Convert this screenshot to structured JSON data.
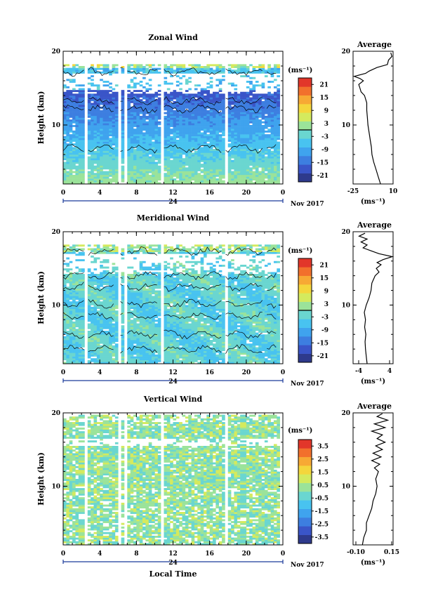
{
  "figure": {
    "x_axis_label": "Local Time",
    "date_label": "Nov 2017",
    "day_label": "24"
  },
  "chart_data": [
    {
      "type": "heatmap",
      "title": "Zonal Wind",
      "ylabel": "Height (km)",
      "ylim": [
        2,
        20
      ],
      "y_ticks": [
        {
          "v": 20,
          "label": "20"
        },
        {
          "v": 10,
          "label": "10"
        }
      ],
      "x_ticks": [
        "0",
        "4",
        "8",
        "12",
        "16",
        "20",
        "0"
      ],
      "xlim": [
        0,
        24
      ],
      "units": "(ms⁻¹)",
      "colorbar": {
        "min": -24,
        "max": 24,
        "zero_line": 0,
        "tick_labels": [
          "21",
          "15",
          "9",
          "3",
          "-3",
          "-9",
          "-15",
          "-21"
        ],
        "colors": [
          "#2e3a8c",
          "#3a55c8",
          "#3d7ee0",
          "#3fa3ee",
          "#48c3f0",
          "#6ad6d0",
          "#9be39a",
          "#d4ea5e",
          "#f4d63c",
          "#f7a934",
          "#f2702c",
          "#e2362a"
        ]
      },
      "profile": {
        "title": "Average",
        "xlim": [
          -25,
          10
        ],
        "x_ticks": [
          "-25",
          "10"
        ],
        "y_ticks": [
          "20",
          "10"
        ],
        "xlabel": "(ms⁻¹)",
        "points": [
          [
            -1,
            2
          ],
          [
            -3,
            3
          ],
          [
            -5,
            4
          ],
          [
            -7,
            5
          ],
          [
            -8.5,
            6
          ],
          [
            -9,
            7
          ],
          [
            -10,
            8
          ],
          [
            -11,
            9
          ],
          [
            -12,
            10
          ],
          [
            -12.5,
            11
          ],
          [
            -13,
            12
          ],
          [
            -13,
            13
          ],
          [
            -15,
            14
          ],
          [
            -18,
            14.5
          ],
          [
            -19,
            15
          ],
          [
            -20,
            15.5
          ],
          [
            -16,
            16
          ],
          [
            -19,
            16.3
          ],
          [
            -24,
            16.6
          ],
          [
            -14,
            17
          ],
          [
            -11,
            17.3
          ],
          [
            -4,
            17.8
          ],
          [
            5,
            18.2
          ],
          [
            6,
            18.8
          ],
          [
            9,
            19.3
          ],
          [
            8,
            19.8
          ]
        ]
      }
    },
    {
      "type": "heatmap",
      "title": "Meridional Wind",
      "ylabel": "Height (km)",
      "ylim": [
        2,
        20
      ],
      "y_ticks": [
        {
          "v": 20,
          "label": "20"
        },
        {
          "v": 10,
          "label": "10"
        }
      ],
      "x_ticks": [
        "0",
        "4",
        "8",
        "12",
        "16",
        "20",
        "0"
      ],
      "xlim": [
        0,
        24
      ],
      "units": "(ms⁻¹)",
      "colorbar": {
        "min": -24,
        "max": 24,
        "zero_line": 0,
        "tick_labels": [
          "21",
          "15",
          "9",
          "3",
          "-3",
          "-9",
          "-15",
          "-21"
        ],
        "colors": [
          "#2e3a8c",
          "#3a55c8",
          "#3d7ee0",
          "#3fa3ee",
          "#48c3f0",
          "#6ad6d0",
          "#9be39a",
          "#d4ea5e",
          "#f4d63c",
          "#f7a934",
          "#f2702c",
          "#e2362a"
        ]
      },
      "profile": {
        "title": "Average",
        "xlim": [
          -5,
          5
        ],
        "x_ticks": [
          "-4",
          "4"
        ],
        "y_ticks": [
          "20",
          "10"
        ],
        "xlabel": "(ms⁻¹)",
        "points": [
          [
            -1.5,
            2
          ],
          [
            -1.7,
            3
          ],
          [
            -1.9,
            4
          ],
          [
            -2.0,
            5
          ],
          [
            -1.8,
            6
          ],
          [
            -2.1,
            7
          ],
          [
            -1.9,
            8
          ],
          [
            -2.2,
            9
          ],
          [
            -1.7,
            10
          ],
          [
            -1.0,
            11
          ],
          [
            -0.5,
            12
          ],
          [
            -0.3,
            13
          ],
          [
            0.5,
            14
          ],
          [
            1.5,
            14.5
          ],
          [
            0.8,
            15
          ],
          [
            2.0,
            15.5
          ],
          [
            1.0,
            15.8
          ],
          [
            2.5,
            16.2
          ],
          [
            4.8,
            16.6
          ],
          [
            1.5,
            17
          ],
          [
            -0.5,
            17.4
          ],
          [
            -2.5,
            17.8
          ],
          [
            -1.5,
            18.2
          ],
          [
            -3.0,
            18.6
          ],
          [
            -1.5,
            19
          ],
          [
            -3.5,
            19.4
          ],
          [
            -2.0,
            19.8
          ]
        ]
      }
    },
    {
      "type": "heatmap",
      "title": "Vertical Wind",
      "ylabel": "Height (km)",
      "ylim": [
        2,
        20
      ],
      "y_ticks": [
        {
          "v": 20,
          "label": "20"
        },
        {
          "v": 10,
          "label": "10"
        }
      ],
      "x_ticks": [
        "0",
        "4",
        "8",
        "12",
        "16",
        "20",
        "0"
      ],
      "xlim": [
        0,
        24
      ],
      "units": "(ms⁻¹)",
      "colorbar": {
        "min": -4,
        "max": 4,
        "zero_line": null,
        "tick_labels": [
          "3.5",
          "2.5",
          "1.5",
          "0.5",
          "-0.5",
          "-1.5",
          "-2.5",
          "-3.5"
        ],
        "colors": [
          "#2e3a8c",
          "#3a55c8",
          "#3d7ee0",
          "#3fa3ee",
          "#48c3f0",
          "#6ad6d0",
          "#9be39a",
          "#d4ea5e",
          "#f4d63c",
          "#f7a934",
          "#f2702c",
          "#e2362a"
        ]
      },
      "profile": {
        "title": "Average",
        "xlim": [
          -0.12,
          0.18
        ],
        "x_ticks": [
          "-0.10",
          "0.15"
        ],
        "y_ticks": [
          "20",
          "10"
        ],
        "xlabel": "(ms⁻¹)",
        "points": [
          [
            -0.05,
            2
          ],
          [
            -0.04,
            3
          ],
          [
            -0.02,
            4
          ],
          [
            -0.02,
            5
          ],
          [
            0.0,
            6
          ],
          [
            0.02,
            7
          ],
          [
            0.03,
            8
          ],
          [
            0.05,
            9
          ],
          [
            0.06,
            10
          ],
          [
            0.05,
            11
          ],
          [
            0.07,
            12
          ],
          [
            0.04,
            12.5
          ],
          [
            0.08,
            13
          ],
          [
            0.02,
            13.5
          ],
          [
            0.09,
            14
          ],
          [
            0.03,
            14.5
          ],
          [
            0.1,
            15
          ],
          [
            0.05,
            15.5
          ],
          [
            0.12,
            16
          ],
          [
            0.06,
            16.5
          ],
          [
            0.1,
            17
          ],
          [
            0.02,
            17.5
          ],
          [
            0.12,
            18
          ],
          [
            0.04,
            18.5
          ],
          [
            0.14,
            19
          ],
          [
            0.06,
            19.5
          ],
          [
            0.1,
            19.9
          ]
        ]
      }
    }
  ]
}
